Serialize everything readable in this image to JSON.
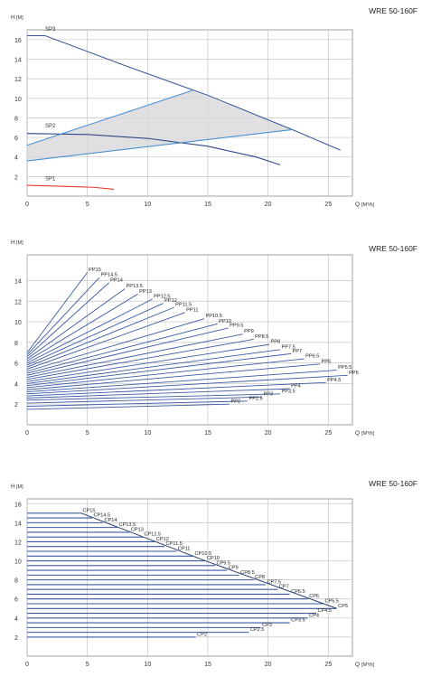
{
  "charts": [
    {
      "type": "line",
      "model_label": "WRE 50-160F",
      "ylabel": "H",
      "ylabel_unit": "[M]",
      "xlabel": "Q",
      "xlabel_unit": "[M³/h]",
      "xlim": [
        0,
        27
      ],
      "ylim": [
        0,
        17
      ],
      "xticks": [
        "0",
        "5",
        "10",
        "15",
        "20",
        "25"
      ],
      "yticks": [
        "2",
        "4",
        "6",
        "8",
        "10",
        "12",
        "14",
        "16"
      ],
      "grid": true,
      "shaded_region": [
        [
          0,
          5.2
        ],
        [
          13.7,
          10.8
        ],
        [
          22,
          6.8
        ],
        [
          0,
          3.6
        ]
      ],
      "series": [
        {
          "name": "SP3",
          "color": "#3d5a98",
          "points": [
            [
              0,
              16.4
            ],
            [
              1.5,
              16.4
            ],
            [
              8,
              13.4
            ],
            [
              15,
              10.3
            ],
            [
              22,
              6.8
            ],
            [
              26,
              4.7
            ]
          ],
          "label_at": [
            1.5,
            16.9
          ]
        },
        {
          "name": "SP2",
          "color": "#2f4888",
          "points": [
            [
              0,
              6.4
            ],
            [
              5,
              6.3
            ],
            [
              10,
              5.9
            ],
            [
              15,
              5.1
            ],
            [
              19,
              4.0
            ],
            [
              21,
              3.2
            ]
          ],
          "label_at": [
            1.5,
            7.0
          ]
        },
        {
          "name": "SP1",
          "color": "#e03b2c",
          "points": [
            [
              0,
              1.1
            ],
            [
              3,
              1.0
            ],
            [
              5.5,
              0.9
            ],
            [
              7.2,
              0.7
            ]
          ],
          "label_at": [
            1.5,
            1.6
          ]
        },
        {
          "name": "",
          "color": "#4a90cf",
          "points": [
            [
              0,
              5.2
            ],
            [
              13.7,
              10.8
            ]
          ]
        },
        {
          "name": "",
          "color": "#4a90cf",
          "points": [
            [
              0,
              3.6
            ],
            [
              22,
              6.8
            ]
          ]
        }
      ]
    },
    {
      "type": "line",
      "model_label": "WRE 50-160F",
      "ylabel": "H",
      "ylabel_unit": "[M]",
      "xlabel": "Q",
      "xlabel_unit": "[M³/h]",
      "xlim": [
        0,
        27
      ],
      "ylim": [
        0,
        16.5
      ],
      "xticks": [
        "0",
        "5",
        "10",
        "15",
        "20",
        "25"
      ],
      "yticks": [
        "2",
        "4",
        "6",
        "8",
        "10",
        "12",
        "14"
      ],
      "grid": true,
      "series_color": "#3a5aa5",
      "series": [
        {
          "name": "PP15",
          "end": [
            5.0,
            14.8
          ],
          "start_h": 7.0
        },
        {
          "name": "PP14.5",
          "end": [
            6.0,
            14.3
          ],
          "start_h": 6.8
        },
        {
          "name": "PP14",
          "end": [
            6.8,
            13.8
          ],
          "start_h": 6.6
        },
        {
          "name": "PP13.5",
          "end": [
            8.1,
            13.2
          ],
          "start_h": 6.4
        },
        {
          "name": "PP13",
          "end": [
            9.2,
            12.7
          ],
          "start_h": 6.2
        },
        {
          "name": "PP12.5",
          "end": [
            10.4,
            12.2
          ],
          "start_h": 6.0
        },
        {
          "name": "PP12",
          "end": [
            11.3,
            11.8
          ],
          "start_h": 5.8
        },
        {
          "name": "PP11.5",
          "end": [
            12.2,
            11.4
          ],
          "start_h": 5.6
        },
        {
          "name": "PP11",
          "end": [
            13.1,
            10.9
          ],
          "start_h": 5.4
        },
        {
          "name": "PP10.5",
          "end": [
            14.7,
            10.3
          ],
          "start_h": 5.2
        },
        {
          "name": "PP10",
          "end": [
            15.8,
            9.8
          ],
          "start_h": 5.0
        },
        {
          "name": "PP9.5",
          "end": [
            16.7,
            9.4
          ],
          "start_h": 4.8
        },
        {
          "name": "PP9",
          "end": [
            17.9,
            8.8
          ],
          "start_h": 4.6
        },
        {
          "name": "PP8.5",
          "end": [
            18.8,
            8.3
          ],
          "start_h": 4.4
        },
        {
          "name": "PP8",
          "end": [
            20.1,
            7.8
          ],
          "start_h": 4.2
        },
        {
          "name": "PP7.5",
          "end": [
            21.0,
            7.3
          ],
          "start_h": 4.0
        },
        {
          "name": "PP7",
          "end": [
            21.9,
            6.9
          ],
          "start_h": 3.8
        },
        {
          "name": "PP6.5",
          "end": [
            23.0,
            6.4
          ],
          "start_h": 3.6
        },
        {
          "name": "PP6",
          "end": [
            24.3,
            5.9
          ],
          "start_h": 3.4
        },
        {
          "name": "PP5.5",
          "end": [
            25.7,
            5.3
          ],
          "start_h": 3.2
        },
        {
          "name": "PP5",
          "end": [
            26.6,
            4.8
          ],
          "start_h": 3.0
        },
        {
          "name": "PP4.5",
          "end": [
            24.8,
            4.1
          ],
          "start_h": 2.8
        },
        {
          "name": "PP4",
          "end": [
            21.8,
            3.5
          ],
          "start_h": 2.6
        },
        {
          "name": "PP3.5",
          "end": [
            21.0,
            3.0
          ],
          "start_h": 2.4
        },
        {
          "name": "PP3",
          "end": [
            19.5,
            2.7
          ],
          "start_h": 2.1
        },
        {
          "name": "PP2.5",
          "end": [
            18.3,
            2.3
          ],
          "start_h": 1.8
        },
        {
          "name": "PP2",
          "end": [
            16.8,
            2.0
          ],
          "start_h": 1.5
        }
      ]
    },
    {
      "type": "line",
      "model_label": "WRE 50-160F",
      "ylabel": "H",
      "ylabel_unit": "[M]",
      "xlabel": "Q",
      "xlabel_unit": "[M³/h]",
      "xlim": [
        0,
        27
      ],
      "ylim": [
        0,
        16.5
      ],
      "xticks": [
        "0",
        "5",
        "10",
        "15",
        "20",
        "25"
      ],
      "yticks": [
        "2",
        "4",
        "6",
        "8",
        "10",
        "12",
        "14",
        "16"
      ],
      "grid": true,
      "series_color": "#3a5aa5",
      "envelope_color": "#2d3f6e",
      "series": [
        {
          "name": "CP15",
          "h": 15.0,
          "end_q": 4.5
        },
        {
          "name": "CP14.5",
          "h": 14.5,
          "end_q": 5.4
        },
        {
          "name": "CP14",
          "h": 14.0,
          "end_q": 6.3
        },
        {
          "name": "CP13.5",
          "h": 13.5,
          "end_q": 7.5
        },
        {
          "name": "CP13",
          "h": 13.0,
          "end_q": 8.5
        },
        {
          "name": "CP12.5",
          "h": 12.5,
          "end_q": 9.6
        },
        {
          "name": "CP12",
          "h": 12.0,
          "end_q": 10.6
        },
        {
          "name": "CP11.5",
          "h": 11.5,
          "end_q": 11.4
        },
        {
          "name": "CP11",
          "h": 11.0,
          "end_q": 12.4
        },
        {
          "name": "CP10.5",
          "h": 10.5,
          "end_q": 13.8
        },
        {
          "name": "CP10",
          "h": 10.0,
          "end_q": 14.8
        },
        {
          "name": "CP9.5",
          "h": 9.5,
          "end_q": 15.6
        },
        {
          "name": "CP9",
          "h": 9.0,
          "end_q": 16.6
        },
        {
          "name": "CP8.5",
          "h": 8.5,
          "end_q": 17.6
        },
        {
          "name": "CP8",
          "h": 8.0,
          "end_q": 18.8
        },
        {
          "name": "CP7.5",
          "h": 7.5,
          "end_q": 19.8
        },
        {
          "name": "CP7",
          "h": 7.0,
          "end_q": 20.8
        },
        {
          "name": "CP6.5",
          "h": 6.5,
          "end_q": 21.8
        },
        {
          "name": "CP6",
          "h": 6.0,
          "end_q": 23.3
        },
        {
          "name": "CP5.5",
          "h": 5.5,
          "end_q": 24.6
        },
        {
          "name": "CP5",
          "h": 5.0,
          "end_q": 25.7
        },
        {
          "name": "CP4.5",
          "h": 4.5,
          "end_q": 24.0
        },
        {
          "name": "CP4",
          "h": 4.0,
          "end_q": 23.3
        },
        {
          "name": "CP3.5",
          "h": 3.5,
          "end_q": 21.8
        },
        {
          "name": "CP3",
          "h": 3.0,
          "end_q": 19.4
        },
        {
          "name": "CP2.5",
          "h": 2.5,
          "end_q": 18.4
        },
        {
          "name": "CP2",
          "h": 2.0,
          "end_q": 14.0
        }
      ],
      "envelope": [
        [
          4.5,
          15.0
        ],
        [
          14.8,
          10.0
        ],
        [
          25.7,
          5.0
        ]
      ]
    }
  ]
}
